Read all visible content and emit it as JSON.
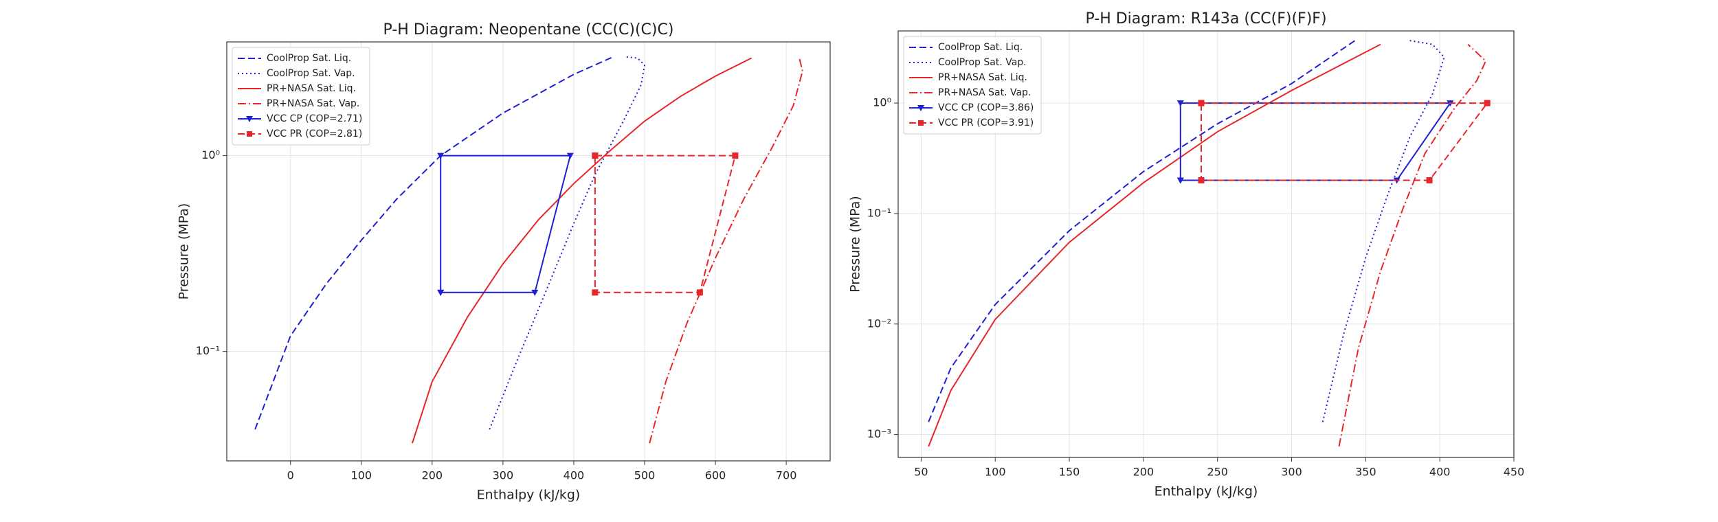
{
  "chart_data": [
    {
      "type": "line",
      "title": "P-H Diagram: Neopentane (CC(C)(C)C)",
      "x_label": "Enthalpy (kJ/kg)",
      "y_label": "Pressure (MPa)",
      "yscale": "log",
      "grid": true,
      "legend": "upper left",
      "xlim": [
        -90,
        762
      ],
      "ylim": [
        0.0276,
        3.81
      ],
      "xticks": [
        0,
        100,
        200,
        300,
        400,
        500,
        600,
        700
      ],
      "yticks": [
        {
          "value": 0.1,
          "label": "10⁻¹"
        },
        {
          "value": 1,
          "label": "10⁰"
        }
      ],
      "series": [
        {
          "name": "CoolProp Sat. Liq.",
          "color": "#1f1fd6",
          "dash": "dashed",
          "x": [
            -50,
            0,
            50,
            100,
            150,
            212,
            300,
            400,
            456
          ],
          "values": [
            0.04,
            0.12,
            0.22,
            0.37,
            0.6,
            1.0,
            1.65,
            2.6,
            3.2
          ]
        },
        {
          "name": "CoolProp Sat. Vap.",
          "color": "#1f1fd6",
          "dash": "dotted",
          "x": [
            281,
            320,
            360,
            400,
            430,
            470,
            495,
            500,
            490,
            471
          ],
          "values": [
            0.04,
            0.09,
            0.2,
            0.45,
            0.8,
            1.5,
            2.3,
            2.9,
            3.15,
            3.2
          ]
        },
        {
          "name": "PR+NASA Sat. Liq.",
          "color": "#e8262a",
          "dash": "solid",
          "x": [
            172,
            200,
            250,
            300,
            350,
            400,
            450,
            500,
            550,
            600,
            651
          ],
          "values": [
            0.034,
            0.07,
            0.15,
            0.28,
            0.47,
            0.72,
            1.05,
            1.5,
            2.0,
            2.55,
            3.15
          ]
        },
        {
          "name": "PR+NASA Sat. Vap.",
          "color": "#e8262a",
          "dash": "dashdot",
          "x": [
            507,
            530,
            560,
            600,
            640,
            680,
            710,
            723,
            718
          ],
          "values": [
            0.034,
            0.07,
            0.14,
            0.3,
            0.6,
            1.1,
            1.8,
            2.7,
            3.2
          ]
        },
        {
          "name": "VCC CP (COP=2.71)",
          "color": "#1f1fd6",
          "dash": "solid",
          "marker": "triangle",
          "x": [
            212,
            212,
            395,
            345,
            212
          ],
          "values": [
            0.2,
            1.0,
            1.0,
            0.2,
            0.2
          ]
        },
        {
          "name": "VCC PR (COP=2.81)",
          "color": "#e8262a",
          "dash": "dashed",
          "marker": "square",
          "x": [
            430,
            628,
            578,
            430,
            430
          ],
          "values": [
            1.0,
            1.0,
            0.2,
            0.2,
            1.0
          ]
        }
      ]
    },
    {
      "type": "line",
      "title": "P-H Diagram: R143a (CC(F)(F)F)",
      "x_label": "Enthalpy (kJ/kg)",
      "y_label": "Pressure (MPa)",
      "yscale": "log",
      "grid": true,
      "legend": "upper left",
      "xlim": [
        34.5,
        450
      ],
      "ylim": [
        0.00062,
        4.5
      ],
      "xticks": [
        50,
        100,
        150,
        200,
        250,
        300,
        350,
        400,
        450
      ],
      "yticks": [
        {
          "value": 0.001,
          "label": "10⁻³"
        },
        {
          "value": 0.01,
          "label": "10⁻²"
        },
        {
          "value": 0.1,
          "label": "10⁻¹"
        },
        {
          "value": 1,
          "label": "10⁰"
        }
      ],
      "series": [
        {
          "name": "CoolProp Sat. Liq.",
          "color": "#1f1fd6",
          "dash": "dashed",
          "x": [
            55,
            70,
            100,
            150,
            200,
            250,
            300,
            343
          ],
          "values": [
            0.0013,
            0.004,
            0.015,
            0.07,
            0.24,
            0.65,
            1.5,
            3.7
          ]
        },
        {
          "name": "CoolProp Sat. Vap.",
          "color": "#1f1fd6",
          "dash": "dotted",
          "x": [
            321,
            335,
            350,
            365,
            380,
            395,
            403,
            395,
            379
          ],
          "values": [
            0.0013,
            0.008,
            0.04,
            0.15,
            0.5,
            1.2,
            2.6,
            3.4,
            3.7
          ]
        },
        {
          "name": "PR+NASA Sat. Liq.",
          "color": "#e8262a",
          "dash": "solid",
          "x": [
            55,
            70,
            100,
            150,
            200,
            250,
            300,
            360
          ],
          "values": [
            0.00078,
            0.0025,
            0.011,
            0.055,
            0.19,
            0.55,
            1.3,
            3.4
          ]
        },
        {
          "name": "PR+NASA Sat. Vap.",
          "color": "#e8262a",
          "dash": "dashdot",
          "x": [
            332,
            345,
            360,
            375,
            390,
            410,
            425,
            431,
            419
          ],
          "values": [
            0.00078,
            0.006,
            0.03,
            0.11,
            0.35,
            0.9,
            1.6,
            2.4,
            3.4
          ]
        },
        {
          "name": "VCC CP (COP=3.86)",
          "color": "#1f1fd6",
          "dash": "solid",
          "marker": "triangle",
          "x": [
            225,
            225,
            407,
            371,
            225
          ],
          "values": [
            0.2,
            1.0,
            1.0,
            0.2,
            0.2
          ]
        },
        {
          "name": "VCC PR (COP=3.91)",
          "color": "#e8262a",
          "dash": "dashed",
          "marker": "square",
          "x": [
            239,
            432,
            393,
            239,
            239
          ],
          "values": [
            1.0,
            1.0,
            0.2,
            0.2,
            1.0
          ]
        }
      ]
    }
  ]
}
